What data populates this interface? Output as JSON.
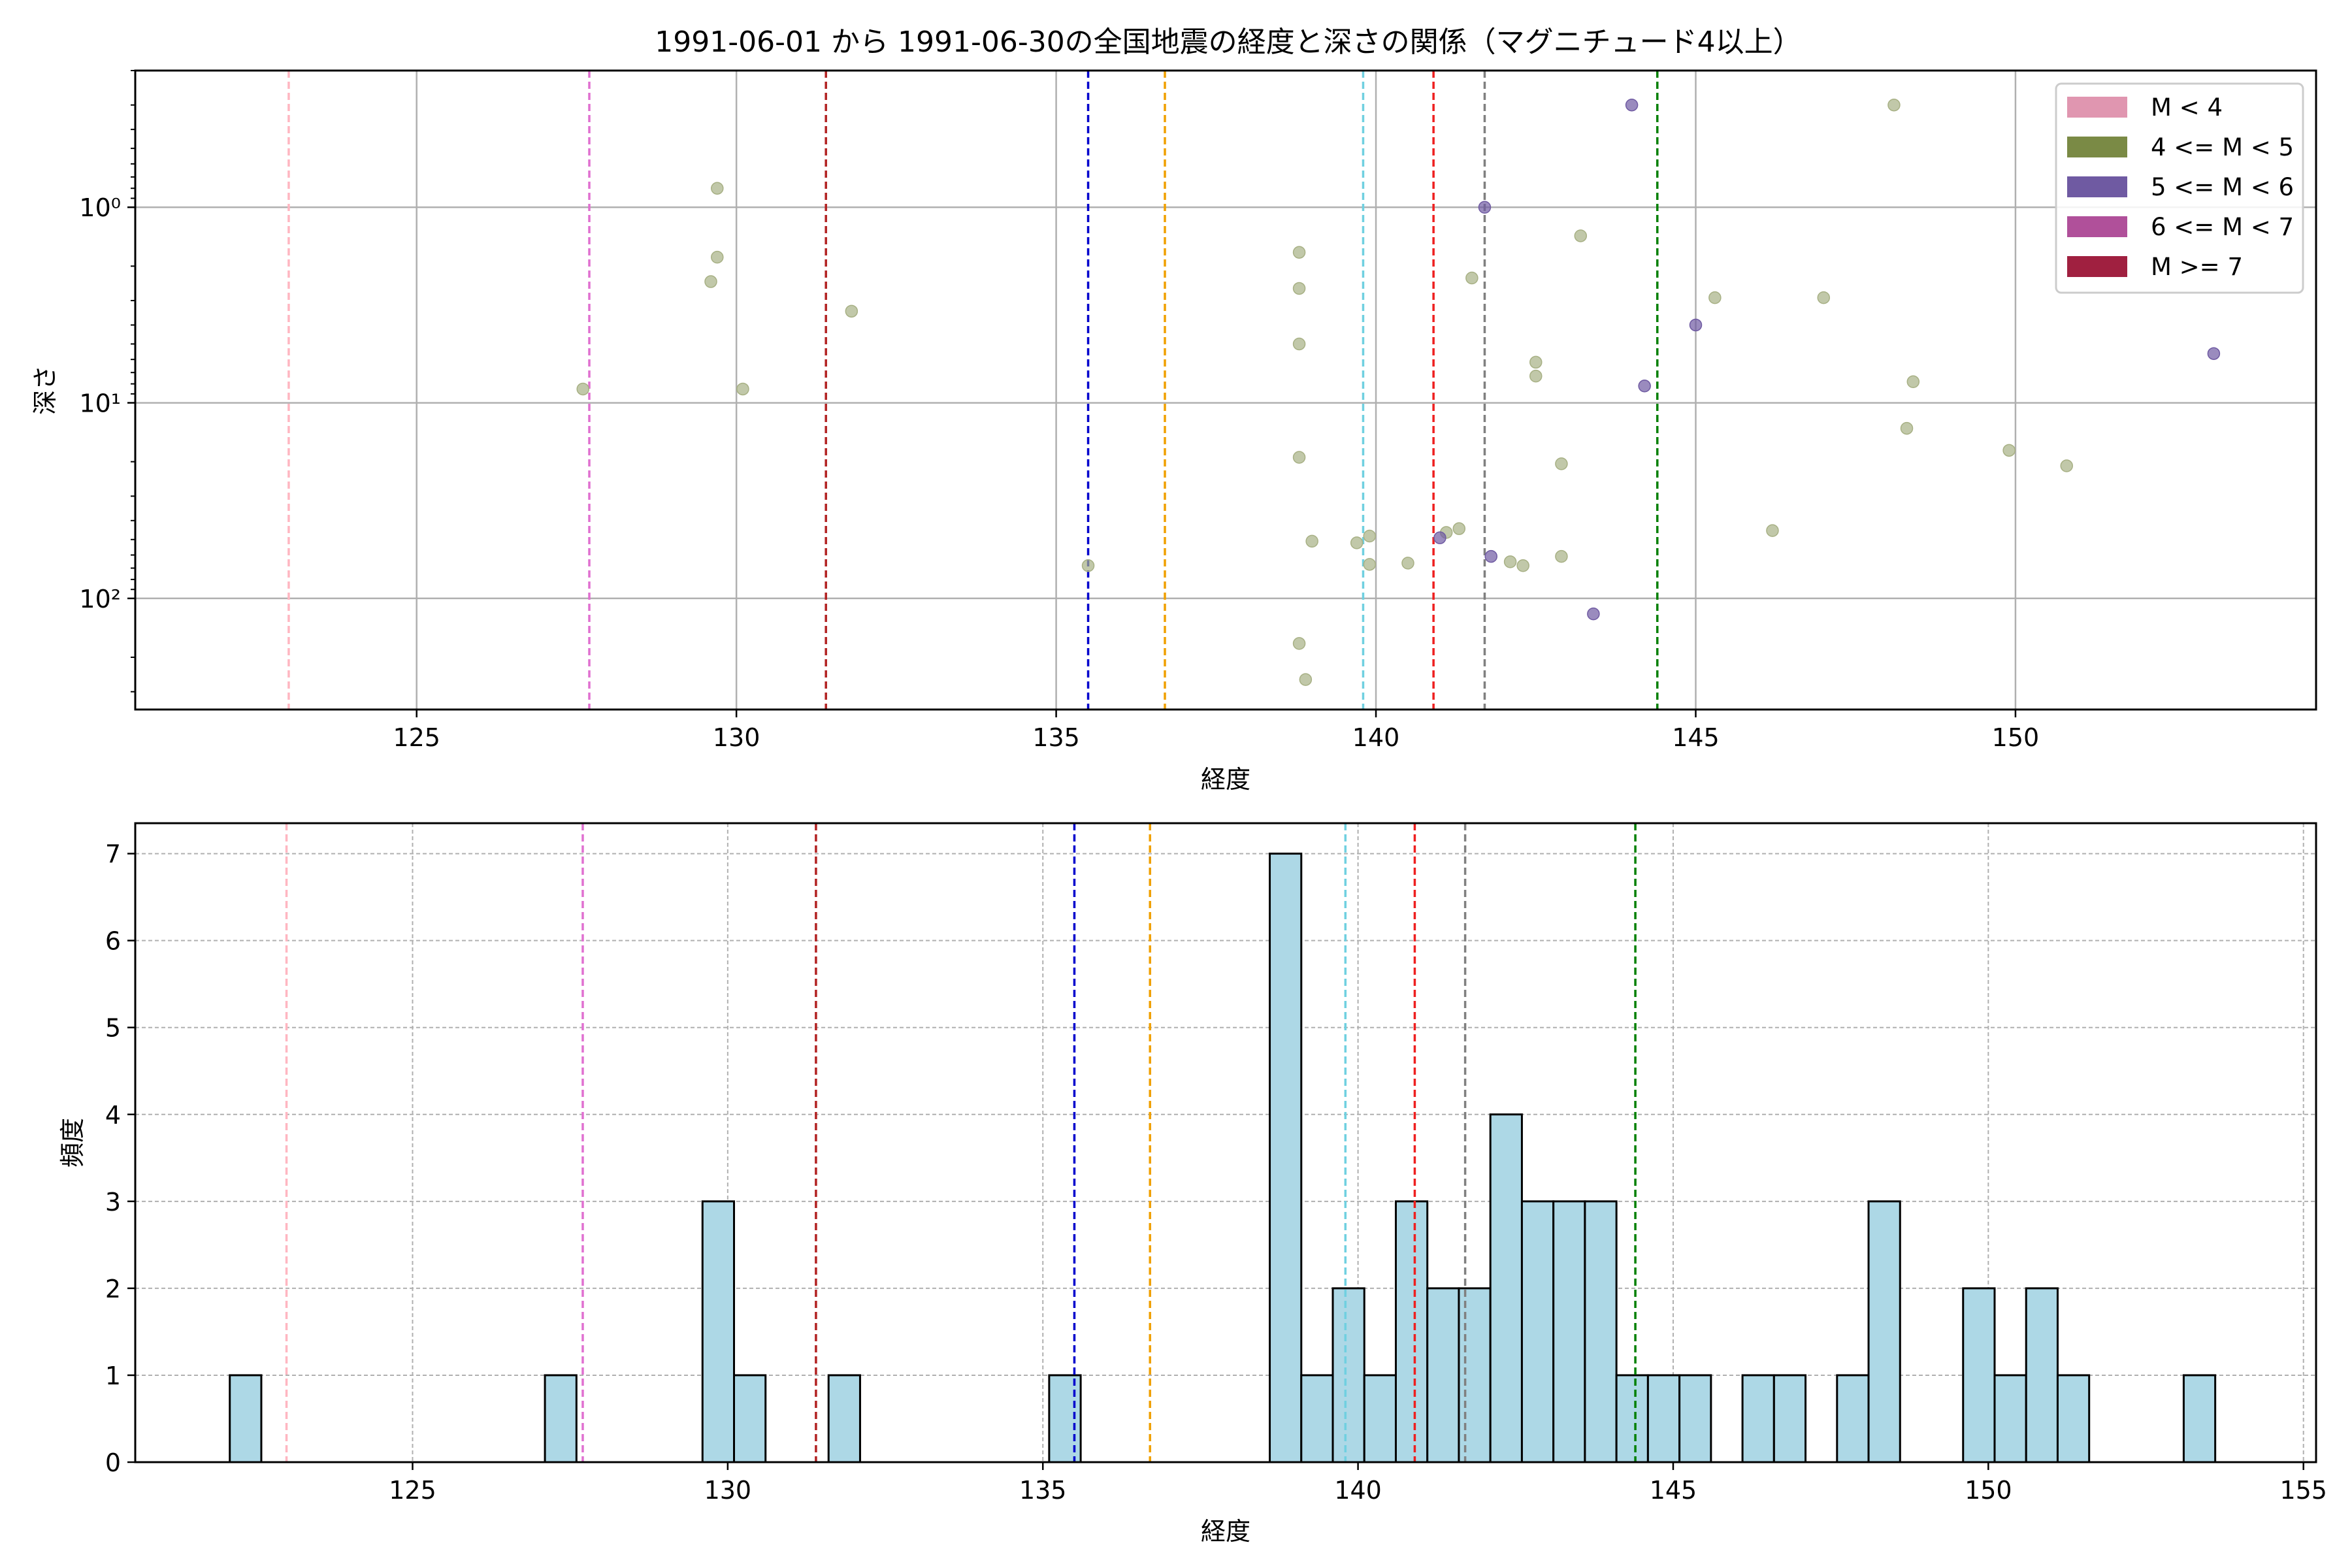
{
  "chart_data": [
    {
      "type": "scatter",
      "title": "1991-06-01 から 1991-06-30の全国地震の経度と深さの関係（マグニチュード4以上）",
      "xlabel": "経度",
      "ylabel": "深さ",
      "xlim": [
        120.6,
        154.7
      ],
      "ylim": [
        370,
        0.2
      ],
      "yscale": "log",
      "y_inverted": true,
      "xticks": [
        125,
        130,
        135,
        140,
        145,
        150
      ],
      "yticks": [
        {
          "value": 1,
          "label": "10⁰"
        },
        {
          "value": 10,
          "label": "10¹"
        },
        {
          "value": 100,
          "label": "10²"
        }
      ],
      "grid": true,
      "legend_position": "top-right",
      "legend": [
        {
          "label": "M < 4",
          "color": "#e096b0"
        },
        {
          "label": "4 <= M < 5",
          "color": "#7a8a45"
        },
        {
          "label": "5 <= M < 6",
          "color": "#6f5aa2"
        },
        {
          "label": "6 <= M < 7",
          "color": "#b0509a"
        },
        {
          "label": "M >= 7",
          "color": "#a02040"
        }
      ],
      "reference_lines": [
        {
          "x": 123.0,
          "color": "#ffb6c1"
        },
        {
          "x": 127.7,
          "color": "#e070d0"
        },
        {
          "x": 131.4,
          "color": "#b22222"
        },
        {
          "x": 135.5,
          "color": "#0000cd"
        },
        {
          "x": 136.7,
          "color": "#f0a000"
        },
        {
          "x": 139.8,
          "color": "#70d0e0"
        },
        {
          "x": 140.9,
          "color": "#ee2020"
        },
        {
          "x": 141.7,
          "color": "#808080"
        },
        {
          "x": 144.4,
          "color": "#008000"
        }
      ],
      "series": [
        {
          "color": "#a7b084",
          "points": [
            {
              "x": 127.6,
              "y": 8.5
            },
            {
              "x": 129.7,
              "y": 0.8
            },
            {
              "x": 129.7,
              "y": 1.8
            },
            {
              "x": 129.6,
              "y": 2.4
            },
            {
              "x": 130.1,
              "y": 8.5
            },
            {
              "x": 131.8,
              "y": 3.4
            },
            {
              "x": 135.5,
              "y": 68
            },
            {
              "x": 138.8,
              "y": 1.7
            },
            {
              "x": 138.8,
              "y": 2.6
            },
            {
              "x": 138.8,
              "y": 5.0
            },
            {
              "x": 138.8,
              "y": 19
            },
            {
              "x": 139.0,
              "y": 51
            },
            {
              "x": 139.7,
              "y": 52
            },
            {
              "x": 139.9,
              "y": 48
            },
            {
              "x": 139.9,
              "y": 67
            },
            {
              "x": 140.5,
              "y": 66
            },
            {
              "x": 141.1,
              "y": 46
            },
            {
              "x": 141.3,
              "y": 44
            },
            {
              "x": 141.5,
              "y": 2.3
            },
            {
              "x": 142.1,
              "y": 65
            },
            {
              "x": 142.3,
              "y": 68
            },
            {
              "x": 142.5,
              "y": 6.2
            },
            {
              "x": 142.5,
              "y": 7.3
            },
            {
              "x": 142.9,
              "y": 20.5
            },
            {
              "x": 142.9,
              "y": 61
            },
            {
              "x": 143.2,
              "y": 1.4
            },
            {
              "x": 138.8,
              "y": 170
            },
            {
              "x": 138.9,
              "y": 260
            },
            {
              "x": 145.3,
              "y": 2.9
            },
            {
              "x": 146.2,
              "y": 45
            },
            {
              "x": 147.0,
              "y": 2.9
            },
            {
              "x": 148.1,
              "y": 0.3
            },
            {
              "x": 148.3,
              "y": 13.5
            },
            {
              "x": 148.4,
              "y": 7.8
            },
            {
              "x": 149.9,
              "y": 17.5
            },
            {
              "x": 150.8,
              "y": 21
            }
          ]
        },
        {
          "color": "#6f5aa2",
          "points": [
            {
              "x": 144.0,
              "y": 0.3
            },
            {
              "x": 141.7,
              "y": 1.0
            },
            {
              "x": 145.0,
              "y": 4.0
            },
            {
              "x": 144.2,
              "y": 8.2
            },
            {
              "x": 141.8,
              "y": 61
            },
            {
              "x": 143.4,
              "y": 120
            },
            {
              "x": 153.1,
              "y": 5.6
            },
            {
              "x": 141.0,
              "y": 49
            }
          ]
        }
      ]
    },
    {
      "type": "bar",
      "subtype": "histogram",
      "xlabel": "経度",
      "ylabel": "頻度",
      "xlim": [
        120.6,
        155.2
      ],
      "ylim": [
        0,
        7.35
      ],
      "xticks": [
        125,
        130,
        135,
        140,
        145,
        150,
        155
      ],
      "yticks": [
        0,
        1,
        2,
        3,
        4,
        5,
        6,
        7
      ],
      "grid": true,
      "bar_color": "#add8e6",
      "bin_width": 0.5,
      "reference_lines": [
        {
          "x": 123.0,
          "color": "#ffb6c1"
        },
        {
          "x": 127.7,
          "color": "#e070d0"
        },
        {
          "x": 131.4,
          "color": "#b22222"
        },
        {
          "x": 135.5,
          "color": "#0000cd"
        },
        {
          "x": 136.7,
          "color": "#f0a000"
        },
        {
          "x": 139.8,
          "color": "#70d0e0"
        },
        {
          "x": 140.9,
          "color": "#ee2020"
        },
        {
          "x": 141.7,
          "color": "#808080"
        },
        {
          "x": 144.4,
          "color": "#008000"
        }
      ],
      "bins": [
        {
          "x0": 122.1,
          "count": 1
        },
        {
          "x0": 127.1,
          "count": 1
        },
        {
          "x0": 129.6,
          "count": 3
        },
        {
          "x0": 130.1,
          "count": 1
        },
        {
          "x0": 131.6,
          "count": 1
        },
        {
          "x0": 135.1,
          "count": 1
        },
        {
          "x0": 138.6,
          "count": 7
        },
        {
          "x0": 139.1,
          "count": 1
        },
        {
          "x0": 139.6,
          "count": 2
        },
        {
          "x0": 140.1,
          "count": 1
        },
        {
          "x0": 140.6,
          "count": 3
        },
        {
          "x0": 141.1,
          "count": 2
        },
        {
          "x0": 141.6,
          "count": 2
        },
        {
          "x0": 142.1,
          "count": 4
        },
        {
          "x0": 142.6,
          "count": 3
        },
        {
          "x0": 143.1,
          "count": 3
        },
        {
          "x0": 143.6,
          "count": 3
        },
        {
          "x0": 144.1,
          "count": 1
        },
        {
          "x0": 144.6,
          "count": 1
        },
        {
          "x0": 145.1,
          "count": 1
        },
        {
          "x0": 146.1,
          "count": 1
        },
        {
          "x0": 146.6,
          "count": 1
        },
        {
          "x0": 147.6,
          "count": 1
        },
        {
          "x0": 148.1,
          "count": 3
        },
        {
          "x0": 149.6,
          "count": 2
        },
        {
          "x0": 150.1,
          "count": 1
        },
        {
          "x0": 150.6,
          "count": 2
        },
        {
          "x0": 151.1,
          "count": 1
        },
        {
          "x0": 153.1,
          "count": 1
        }
      ]
    }
  ]
}
